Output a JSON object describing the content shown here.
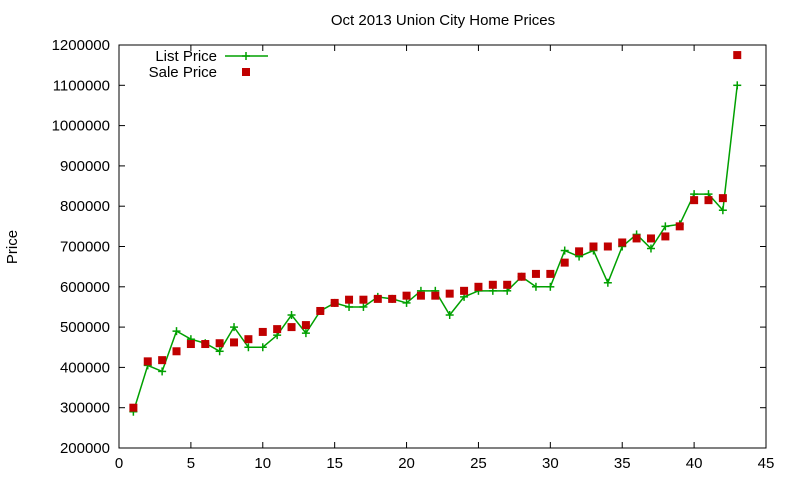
{
  "chart_data": {
    "type": "line",
    "title": "Oct 2013 Union City Home Prices",
    "xlabel": "",
    "ylabel": "Price",
    "xlim": [
      0,
      45
    ],
    "ylim": [
      200000,
      1200000
    ],
    "xticks": [
      0,
      5,
      10,
      15,
      20,
      25,
      30,
      35,
      40,
      45
    ],
    "yticks": [
      200000,
      300000,
      400000,
      500000,
      600000,
      700000,
      800000,
      900000,
      1000000,
      1100000,
      1200000
    ],
    "grid": false,
    "legend": "top-left",
    "series": [
      {
        "name": "List Price",
        "style": "line-plus",
        "color": "#00a000",
        "x": [
          1,
          2,
          3,
          4,
          5,
          6,
          7,
          8,
          9,
          10,
          11,
          12,
          13,
          14,
          15,
          16,
          17,
          18,
          19,
          20,
          21,
          22,
          23,
          24,
          25,
          26,
          27,
          28,
          29,
          30,
          31,
          32,
          33,
          34,
          35,
          36,
          37,
          38,
          39,
          40,
          41,
          42,
          43
        ],
        "y": [
          290000,
          405000,
          390000,
          490000,
          470000,
          460000,
          440000,
          500000,
          450000,
          450000,
          480000,
          530000,
          485000,
          540000,
          560000,
          550000,
          550000,
          575000,
          570000,
          560000,
          590000,
          590000,
          530000,
          575000,
          590000,
          590000,
          590000,
          625000,
          600000,
          600000,
          690000,
          675000,
          690000,
          610000,
          700000,
          730000,
          695000,
          750000,
          755000,
          830000,
          830000,
          790000,
          1100000
        ]
      },
      {
        "name": "Sale Price",
        "style": "square-markers",
        "color": "#c00000",
        "x": [
          1,
          2,
          3,
          4,
          5,
          6,
          7,
          8,
          9,
          10,
          11,
          12,
          13,
          14,
          15,
          16,
          17,
          18,
          19,
          20,
          21,
          22,
          23,
          24,
          25,
          26,
          27,
          28,
          29,
          30,
          31,
          32,
          33,
          34,
          35,
          36,
          37,
          38,
          39,
          40,
          41,
          42,
          43
        ],
        "y": [
          300000,
          415000,
          418000,
          440000,
          458000,
          458000,
          460000,
          462000,
          470000,
          488000,
          495000,
          500000,
          505000,
          540000,
          560000,
          568000,
          568000,
          570000,
          570000,
          578000,
          578000,
          578000,
          583000,
          590000,
          600000,
          605000,
          605000,
          625000,
          632000,
          632000,
          660000,
          688000,
          700000,
          700000,
          710000,
          720000,
          720000,
          725000,
          750000,
          815000,
          815000,
          820000,
          1175000
        ]
      }
    ]
  }
}
